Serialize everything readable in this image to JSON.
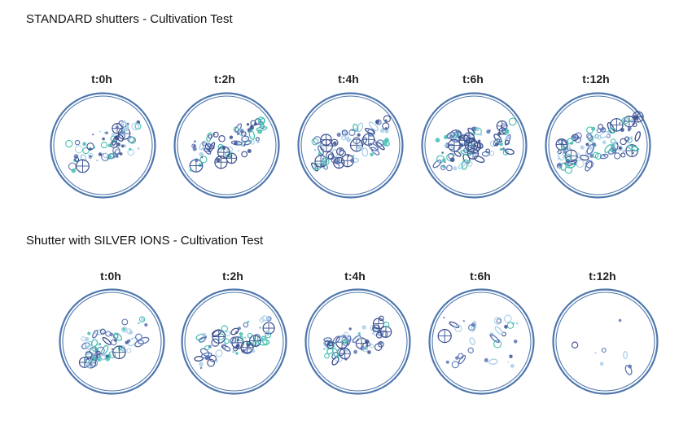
{
  "sections": [
    {
      "title": "STANDARD shutters - Cultivation Test",
      "dishes": [
        {
          "time": "t:0h",
          "density": 1.0
        },
        {
          "time": "t:2h",
          "density": 1.0
        },
        {
          "time": "t:4h",
          "density": 1.1
        },
        {
          "time": "t:6h",
          "density": 1.3
        },
        {
          "time": "t:12h",
          "density": 1.5
        }
      ]
    },
    {
      "title": "Shutter with SILVER IONS - Cultivation Test",
      "dishes": [
        {
          "time": "t:0h",
          "density": 1.0
        },
        {
          "time": "t:2h",
          "density": 1.0
        },
        {
          "time": "t:4h",
          "density": 0.85
        },
        {
          "time": "t:6h",
          "density": 0.5
        },
        {
          "time": "t:12h",
          "density": 0.12
        }
      ]
    }
  ],
  "colors": {
    "dish_ring": "#4f77ad",
    "microbe_blue": "#5b74b6",
    "microbe_teal": "#45c0b0",
    "microbe_navy": "#3a4f8f",
    "microbe_light": "#a9cfe8"
  }
}
